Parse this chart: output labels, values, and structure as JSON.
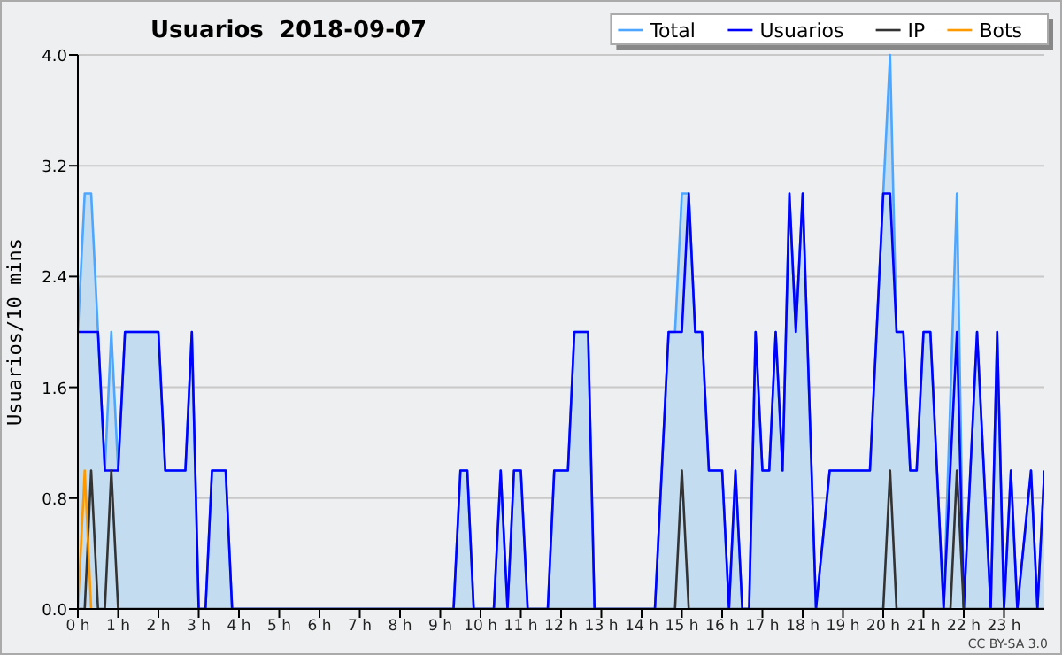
{
  "chart_data": {
    "type": "line",
    "title": "Usuarios  2018-09-07",
    "ylabel": "Usuarios/10 mins",
    "annotations": [
      "CC BY-SA 3.0"
    ],
    "xlim": [
      0,
      24
    ],
    "ylim": [
      0,
      4
    ],
    "xticks": [
      {
        "value": 0,
        "label": "0 h"
      },
      {
        "value": 1,
        "label": "1 h"
      },
      {
        "value": 2,
        "label": "2 h"
      },
      {
        "value": 3,
        "label": "3 h"
      },
      {
        "value": 4,
        "label": "4 h"
      },
      {
        "value": 5,
        "label": "5 h"
      },
      {
        "value": 6,
        "label": "6 h"
      },
      {
        "value": 7,
        "label": "7 h"
      },
      {
        "value": 8,
        "label": "8 h"
      },
      {
        "value": 9,
        "label": "9 h"
      },
      {
        "value": 10,
        "label": "10 h"
      },
      {
        "value": 11,
        "label": "11 h"
      },
      {
        "value": 12,
        "label": "12 h"
      },
      {
        "value": 13,
        "label": "13 h"
      },
      {
        "value": 14,
        "label": "14 h"
      },
      {
        "value": 15,
        "label": "15 h"
      },
      {
        "value": 16,
        "label": "16 h"
      },
      {
        "value": 17,
        "label": "17 h"
      },
      {
        "value": 18,
        "label": "18 h"
      },
      {
        "value": 19,
        "label": "19 h"
      },
      {
        "value": 20,
        "label": "20 h"
      },
      {
        "value": 21,
        "label": "21 h"
      },
      {
        "value": 22,
        "label": "22 h"
      },
      {
        "value": 23,
        "label": "23 h"
      }
    ],
    "yticks": [
      {
        "value": 0,
        "label": "0.0"
      },
      {
        "value": 0.8,
        "label": "0.8"
      },
      {
        "value": 1.6,
        "label": "1.6"
      },
      {
        "value": 2.4,
        "label": "2.4"
      },
      {
        "value": 3.2,
        "label": "3.2"
      },
      {
        "value": 4,
        "label": "4.0"
      }
    ],
    "grid": "y",
    "legend": "top right",
    "marker": "none",
    "line_style": "solid",
    "series": [
      {
        "name": "Total",
        "type": "area",
        "color": "#4da6ff",
        "x": [
          0,
          0.17,
          0.33,
          0.5,
          0.67,
          0.83,
          1,
          1.17,
          2,
          2.17,
          2.67,
          2.83,
          3,
          3.17,
          3.33,
          3.67,
          3.83,
          9.33,
          9.5,
          9.67,
          9.83,
          10.33,
          10.5,
          10.67,
          10.83,
          11,
          11.17,
          11.67,
          11.83,
          12.17,
          12.33,
          12.67,
          12.83,
          14.33,
          14.67,
          14.83,
          15,
          15.17,
          15.33,
          15.5,
          15.67,
          16,
          16.17,
          16.33,
          16.5,
          16.67,
          16.83,
          17,
          17.17,
          17.33,
          17.5,
          17.67,
          17.83,
          18,
          18.33,
          18.67,
          19.67,
          20,
          20.17,
          20.33,
          20.5,
          20.67,
          20.83,
          21,
          21.17,
          21.5,
          21.83,
          22,
          22.33,
          22.67,
          22.83,
          23,
          23.17,
          23.33,
          23.67,
          23.83,
          24
        ],
        "values": [
          2,
          3,
          3,
          2,
          1,
          2,
          1,
          2,
          2,
          1,
          1,
          2,
          0,
          0,
          1,
          1,
          0,
          0,
          1,
          1,
          0,
          0,
          1,
          0,
          1,
          1,
          0,
          0,
          1,
          1,
          2,
          2,
          0,
          0,
          2,
          2,
          3,
          3,
          2,
          2,
          1,
          1,
          0,
          1,
          0,
          0,
          2,
          1,
          1,
          2,
          1,
          3,
          2,
          3,
          0,
          1,
          1,
          3,
          4,
          2,
          2,
          1,
          1,
          2,
          2,
          0,
          3,
          0,
          2,
          0,
          2,
          0,
          1,
          0,
          1,
          0,
          1
        ]
      },
      {
        "name": "Usuarios",
        "color": "#0000ff",
        "x": [
          0,
          0.5,
          0.67,
          1,
          1.17,
          2,
          2.17,
          2.67,
          2.83,
          3,
          3.17,
          3.33,
          3.67,
          3.83,
          9.33,
          9.5,
          9.67,
          9.83,
          10.33,
          10.5,
          10.67,
          10.83,
          11,
          11.17,
          11.67,
          11.83,
          12.17,
          12.33,
          12.67,
          12.83,
          14.33,
          14.67,
          15,
          15.17,
          15.33,
          15.5,
          15.67,
          16,
          16.17,
          16.33,
          16.5,
          16.67,
          16.83,
          17,
          17.17,
          17.33,
          17.5,
          17.67,
          17.83,
          18,
          18.33,
          18.67,
          19.67,
          20,
          20.17,
          20.33,
          20.5,
          20.67,
          20.83,
          21,
          21.17,
          21.5,
          21.83,
          22,
          22.33,
          22.67,
          22.83,
          23,
          23.17,
          23.33,
          23.67,
          23.83,
          24
        ],
        "values": [
          2,
          2,
          1,
          1,
          2,
          2,
          1,
          1,
          2,
          0,
          0,
          1,
          1,
          0,
          0,
          1,
          1,
          0,
          0,
          1,
          0,
          1,
          1,
          0,
          0,
          1,
          1,
          2,
          2,
          0,
          0,
          2,
          2,
          3,
          2,
          2,
          1,
          1,
          0,
          1,
          0,
          0,
          2,
          1,
          1,
          2,
          1,
          3,
          2,
          3,
          0,
          1,
          1,
          3,
          3,
          2,
          2,
          1,
          1,
          2,
          2,
          0,
          2,
          0,
          2,
          0,
          2,
          0,
          1,
          0,
          1,
          0,
          1
        ]
      },
      {
        "name": "IP",
        "color": "#333333",
        "x": [
          0,
          0.17,
          0.33,
          0.5,
          0.67,
          0.83,
          1,
          14.83,
          15,
          15.17,
          20,
          20.17,
          20.33,
          21.67,
          21.83,
          22,
          24
        ],
        "values": [
          0,
          0,
          1,
          0,
          0,
          1,
          0,
          0,
          1,
          0,
          0,
          1,
          0,
          0,
          1,
          0,
          0
        ]
      },
      {
        "name": "Bots",
        "color": "#ff9900",
        "x": [
          0,
          0.17,
          0.33
        ],
        "values": [
          0,
          1,
          0
        ]
      }
    ]
  }
}
